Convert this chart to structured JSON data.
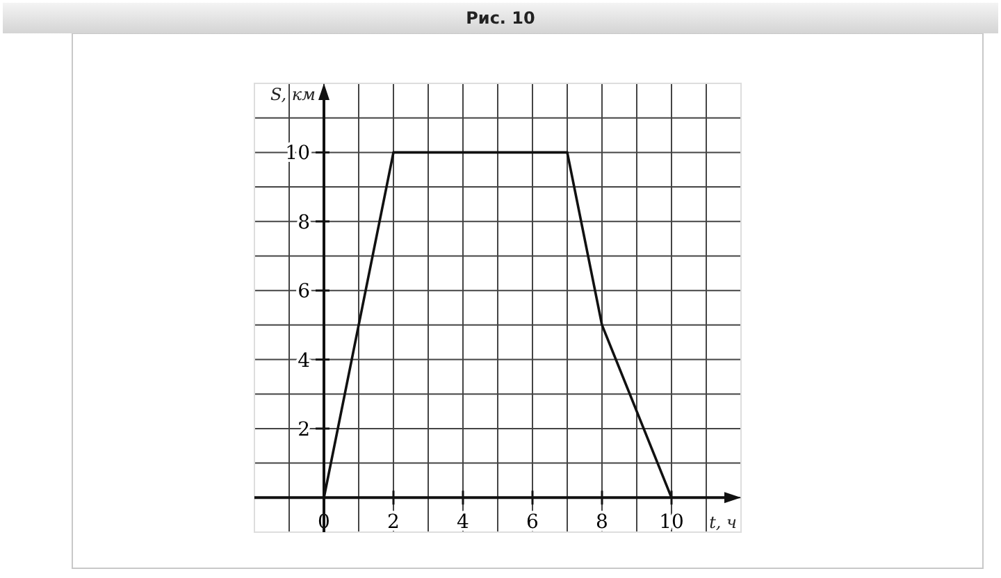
{
  "chart_data": {
    "type": "line",
    "title": "Рис. 10",
    "xlabel": "t, ч",
    "ylabel": "S, км",
    "x": [
      0,
      2,
      7,
      8,
      10
    ],
    "series": [
      {
        "color": "#111111",
        "values": [
          0,
          10,
          10,
          5,
          0
        ]
      }
    ],
    "xlim": [
      -2,
      12
    ],
    "ylim": [
      -1,
      12
    ],
    "xticks": [
      {
        "value": -1,
        "label": null
      },
      0,
      {
        "value": 1,
        "label": null
      },
      2,
      {
        "value": 3,
        "label": null
      },
      4,
      {
        "value": 5,
        "label": null
      },
      6,
      {
        "value": 7,
        "label": null
      },
      8,
      {
        "value": 9,
        "label": null
      },
      10,
      {
        "value": 11,
        "label": null
      }
    ],
    "yticks": [
      {
        "value": 0,
        "label": null
      },
      {
        "value": 1,
        "label": null
      },
      2,
      {
        "value": 3,
        "label": null
      },
      4,
      {
        "value": 5,
        "label": null
      },
      6,
      {
        "value": 7,
        "label": null
      },
      8,
      {
        "value": 9,
        "label": null
      },
      10,
      {
        "value": 11,
        "label": null
      }
    ],
    "grid": true,
    "marker": "none",
    "line_style": "solid"
  }
}
